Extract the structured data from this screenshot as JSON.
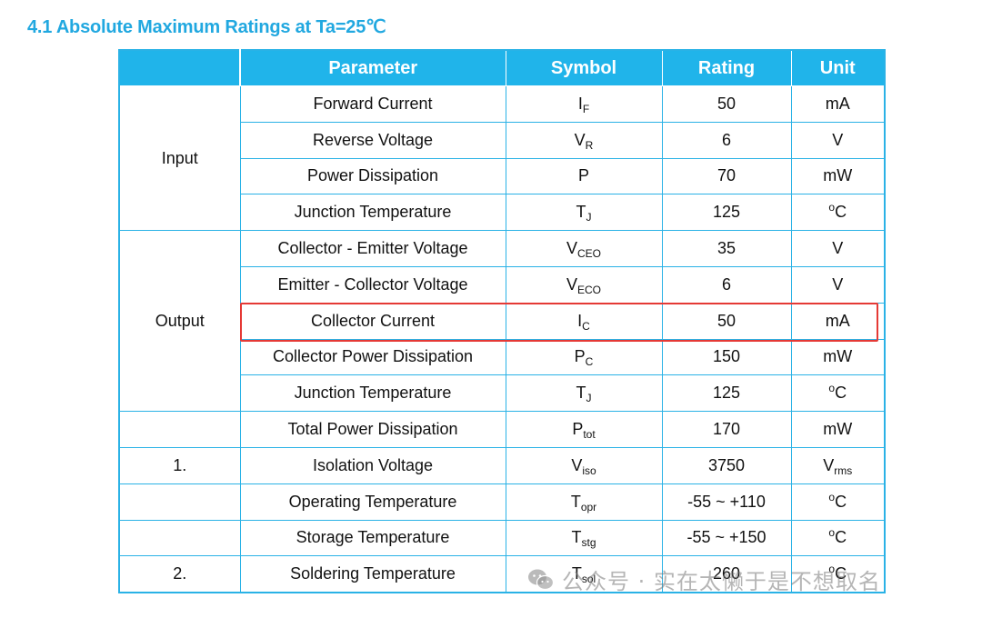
{
  "title": "4.1 Absolute Maximum Ratings at Ta=25℃",
  "headers": {
    "group": "",
    "parameter": "Parameter",
    "symbol": "Symbol",
    "rating": "Rating",
    "unit": "Unit"
  },
  "groups": {
    "input": "Input",
    "output": "Output",
    "note1": "1.",
    "note2": "2."
  },
  "rows": [
    {
      "parameter": "Forward Current",
      "sym": "I",
      "sub": "F",
      "rating": "50",
      "unit": "mA",
      "unit_sup": "",
      "unit_sub": ""
    },
    {
      "parameter": "Reverse Voltage",
      "sym": "V",
      "sub": "R",
      "rating": "6",
      "unit": "V",
      "unit_sup": "",
      "unit_sub": ""
    },
    {
      "parameter": "Power Dissipation",
      "sym": "P",
      "sub": "",
      "rating": "70",
      "unit": "mW",
      "unit_sup": "",
      "unit_sub": ""
    },
    {
      "parameter": "Junction Temperature",
      "sym": "T",
      "sub": "J",
      "rating": "125",
      "unit": "C",
      "unit_sup": "o",
      "unit_sub": ""
    },
    {
      "parameter": "Collector - Emitter Voltage",
      "sym": "V",
      "sub": "CEO",
      "rating": "35",
      "unit": "V",
      "unit_sup": "",
      "unit_sub": ""
    },
    {
      "parameter": "Emitter - Collector Voltage",
      "sym": "V",
      "sub": "ECO",
      "rating": "6",
      "unit": "V",
      "unit_sup": "",
      "unit_sub": ""
    },
    {
      "parameter": "Collector Current",
      "sym": "I",
      "sub": "C",
      "rating": "50",
      "unit": "mA",
      "unit_sup": "",
      "unit_sub": ""
    },
    {
      "parameter": "Collector Power Dissipation",
      "sym": "P",
      "sub": "C",
      "rating": "150",
      "unit": "mW",
      "unit_sup": "",
      "unit_sub": ""
    },
    {
      "parameter": "Junction Temperature",
      "sym": "T",
      "sub": "J",
      "rating": "125",
      "unit": "C",
      "unit_sup": "o",
      "unit_sub": ""
    },
    {
      "parameter": "Total Power Dissipation",
      "sym": "P",
      "sub": "tot",
      "rating": "170",
      "unit": "mW",
      "unit_sup": "",
      "unit_sub": ""
    },
    {
      "parameter": "Isolation Voltage",
      "sym": "V",
      "sub": "iso",
      "rating": "3750",
      "unit": "V",
      "unit_sup": "",
      "unit_sub": "rms"
    },
    {
      "parameter": "Operating Temperature",
      "sym": "T",
      "sub": "opr",
      "rating": "-55 ~ +110",
      "unit": "C",
      "unit_sup": "o",
      "unit_sub": ""
    },
    {
      "parameter": "Storage Temperature",
      "sym": "T",
      "sub": "stg",
      "rating": "-55 ~ +150",
      "unit": "C",
      "unit_sup": "o",
      "unit_sub": ""
    },
    {
      "parameter": "Soldering Temperature",
      "sym": "T",
      "sub": "sol",
      "rating": "260",
      "unit": "C",
      "unit_sup": "o",
      "unit_sub": ""
    }
  ],
  "highlight_color": "#e53935",
  "header_color": "#20b4ea",
  "watermark": {
    "icon": "wechat-icon",
    "text": "公众号 · 实在太懒于是不想取名"
  }
}
